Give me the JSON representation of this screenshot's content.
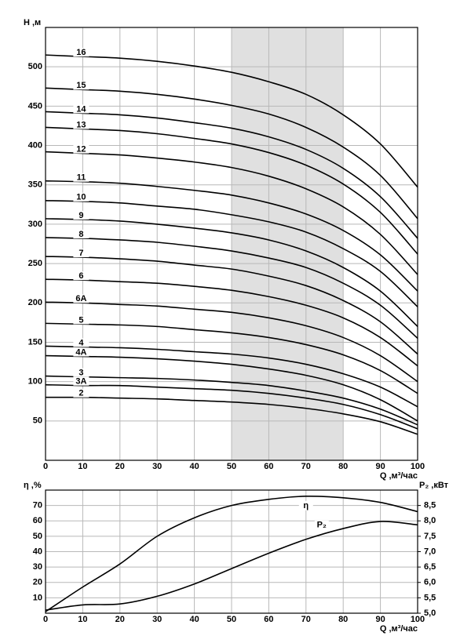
{
  "chart_data": [
    {
      "type": "line",
      "y_label": "H ,м",
      "x_label": "Q ,м³/час",
      "x": [
        0,
        10,
        20,
        30,
        40,
        50,
        60,
        70,
        80,
        90,
        100
      ],
      "xlim": [
        0,
        100
      ],
      "xticks": [
        0,
        10,
        20,
        30,
        40,
        50,
        60,
        70,
        80,
        90,
        100
      ],
      "ylim": [
        0,
        550
      ],
      "yticks": [
        50,
        100,
        150,
        200,
        250,
        300,
        350,
        400,
        450,
        500
      ],
      "grid": true,
      "highlight_x": [
        50,
        80
      ],
      "highlight_color": "#e0e0e0",
      "series": [
        {
          "name": "16",
          "color": "#000000",
          "values": [
            515,
            513,
            511,
            507,
            501,
            493,
            481,
            465,
            439,
            402,
            347
          ]
        },
        {
          "name": "15",
          "color": "#000000",
          "values": [
            473,
            471,
            469,
            465,
            459,
            451,
            440,
            423,
            398,
            362,
            307
          ]
        },
        {
          "name": "14",
          "color": "#000000",
          "values": [
            443,
            441,
            439,
            435,
            429,
            422,
            411,
            395,
            371,
            335,
            282
          ]
        },
        {
          "name": "13",
          "color": "#000000",
          "values": [
            423,
            421,
            419,
            415,
            409,
            402,
            391,
            375,
            351,
            315,
            262
          ]
        },
        {
          "name": "12",
          "color": "#000000",
          "values": [
            392,
            390,
            388,
            384,
            379,
            372,
            361,
            345,
            322,
            287,
            236
          ]
        },
        {
          "name": "11",
          "color": "#000000",
          "values": [
            355,
            354,
            352,
            348,
            343,
            337,
            327,
            313,
            292,
            261,
            215
          ]
        },
        {
          "name": "10",
          "color": "#000000",
          "values": [
            330,
            329,
            327,
            323,
            319,
            312,
            303,
            290,
            269,
            240,
            195
          ]
        },
        {
          "name": "9",
          "color": "#000000",
          "values": [
            307,
            306,
            304,
            300,
            295,
            289,
            280,
            266,
            245,
            215,
            170
          ]
        },
        {
          "name": "8",
          "color": "#000000",
          "values": [
            283,
            282,
            280,
            277,
            272,
            266,
            257,
            245,
            225,
            197,
            155
          ]
        },
        {
          "name": "7",
          "color": "#000000",
          "values": [
            259,
            258,
            256,
            253,
            248,
            243,
            234,
            222,
            203,
            176,
            135
          ]
        },
        {
          "name": "6",
          "color": "#000000",
          "values": [
            230,
            229,
            227,
            225,
            221,
            216,
            208,
            197,
            181,
            156,
            120
          ]
        },
        {
          "name": "6A",
          "color": "#000000",
          "values": [
            201,
            200,
            198,
            196,
            192,
            188,
            181,
            171,
            156,
            133,
            100
          ]
        },
        {
          "name": "5",
          "color": "#000000",
          "values": [
            174,
            173,
            172,
            170,
            166,
            162,
            156,
            147,
            134,
            114,
            85
          ]
        },
        {
          "name": "4",
          "color": "#000000",
          "values": [
            145,
            144,
            143,
            141,
            138,
            135,
            130,
            122,
            110,
            93,
            68
          ]
        },
        {
          "name": "4A",
          "color": "#000000",
          "values": [
            133,
            132,
            131,
            129,
            126,
            122,
            116,
            108,
            96,
            77,
            50
          ]
        },
        {
          "name": "3",
          "color": "#000000",
          "values": [
            107,
            106,
            105,
            104,
            102,
            99,
            95,
            88,
            79,
            65,
            45
          ]
        },
        {
          "name": "3A",
          "color": "#000000",
          "values": [
            96,
            95,
            95,
            93,
            91,
            89,
            85,
            79,
            71,
            58,
            40
          ]
        },
        {
          "name": "2",
          "color": "#000000",
          "values": [
            80,
            80,
            79,
            78,
            76,
            74,
            71,
            66,
            59,
            49,
            33
          ]
        }
      ]
    },
    {
      "type": "line",
      "y_label": "η ,%",
      "y2_label": "P₂ ,кВт",
      "x_label": "Q ,м³/час",
      "x": [
        0,
        10,
        20,
        30,
        40,
        50,
        60,
        70,
        80,
        90,
        100
      ],
      "xlim": [
        0,
        100
      ],
      "xticks": [
        0,
        10,
        20,
        30,
        40,
        50,
        60,
        70,
        80,
        90,
        100
      ],
      "ylim": [
        0,
        80
      ],
      "yticks": [
        10,
        20,
        30,
        40,
        50,
        60,
        70
      ],
      "y2lim": [
        5,
        9
      ],
      "y2ticks": [
        {
          "value": 5,
          "label": "5,0"
        },
        {
          "value": 5.5,
          "label": "5,5"
        },
        {
          "value": 6,
          "label": "6,0"
        },
        {
          "value": 6.5,
          "label": "6,5"
        },
        {
          "value": 7,
          "label": "7,0"
        },
        {
          "value": 7.5,
          "label": "7,5"
        },
        {
          "value": 8,
          "label": "8,0"
        },
        {
          "value": 8.5,
          "label": "8,5"
        }
      ],
      "grid": true,
      "series": [
        {
          "name": "η",
          "color": "#000000",
          "values": [
            1,
            17,
            32,
            50,
            62,
            70,
            74,
            76,
            75,
            72,
            66
          ]
        },
        {
          "name": "P₂",
          "color": "#000000",
          "axis": "y2",
          "values": [
            5.1,
            5.27,
            5.3,
            5.55,
            5.95,
            6.45,
            6.95,
            7.4,
            7.75,
            7.98,
            7.87
          ]
        }
      ]
    }
  ]
}
